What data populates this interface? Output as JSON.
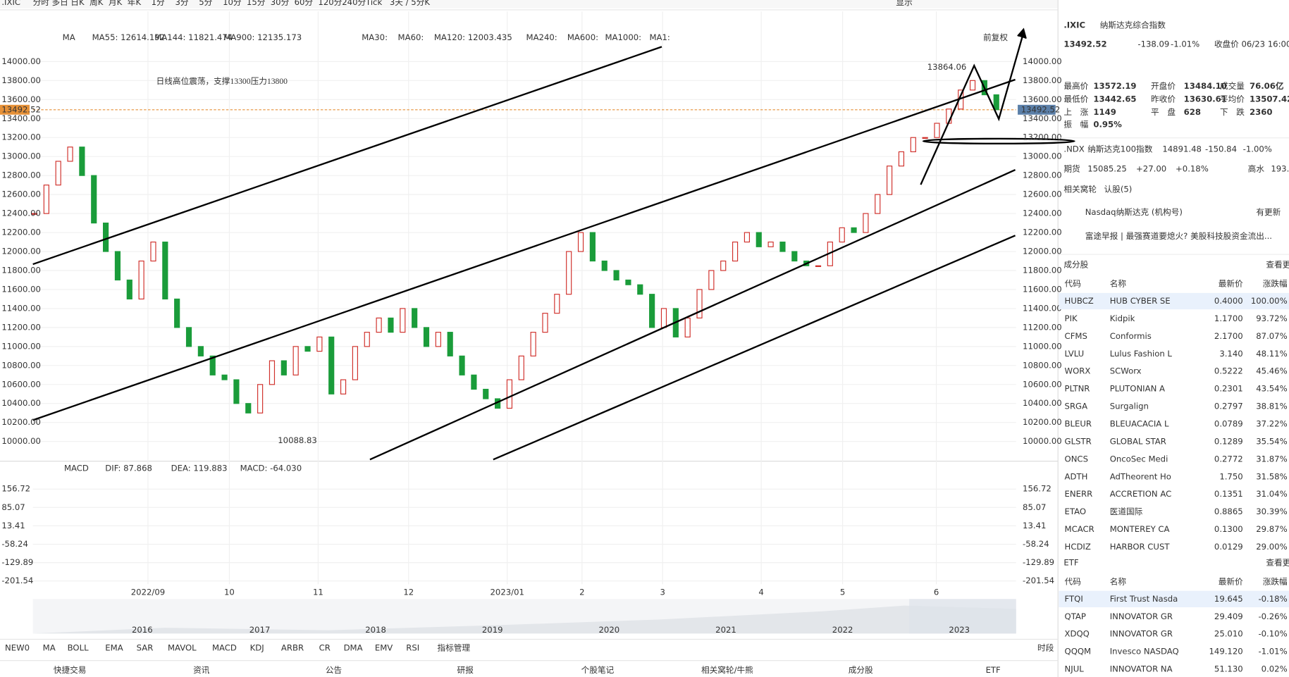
{
  "toolbar": {
    "ticker": ".IXIC",
    "periods": [
      "分时",
      "多日",
      "日K",
      "周K",
      "月K",
      "年K",
      "1分",
      "3分",
      "5分",
      "10分",
      "15分",
      "30分",
      "60分",
      "120分",
      "240分",
      "Tick",
      "3天 / 5分K"
    ],
    "display": "显示"
  },
  "chart": {
    "ma_legend": [
      "MA",
      "MA55: 12614.192",
      "MA144: 11821.474",
      "MA900: 12135.173",
      "MA30:",
      "MA60:",
      "MA120: 12003.435",
      "MA240:",
      "MA600:",
      "MA1000:",
      "MA1:"
    ],
    "adjust": "前复权",
    "annotation": "日线高位震荡，支撑13300压力13800",
    "yticks": [
      {
        "value": 14000,
        "label": "14000.00"
      },
      {
        "value": 13800,
        "label": "13800.00"
      },
      {
        "value": 13600,
        "label": "13600.00"
      },
      {
        "value": 13400,
        "label": "13400.00"
      },
      {
        "value": 13200,
        "label": "13200.00"
      },
      {
        "value": 13000,
        "label": "13000.00"
      },
      {
        "value": 12800,
        "label": "12800.00"
      },
      {
        "value": 12600,
        "label": "12600.00"
      },
      {
        "value": 12400,
        "label": "12400.00"
      },
      {
        "value": 12200,
        "label": "12200.00"
      },
      {
        "value": 12000,
        "label": "12000.00"
      },
      {
        "value": 11800,
        "label": "11800.00"
      },
      {
        "value": 11600,
        "label": "11600.00"
      },
      {
        "value": 11400,
        "label": "11400.00"
      },
      {
        "value": 11200,
        "label": "11200.00"
      },
      {
        "value": 11000,
        "label": "11000.00"
      },
      {
        "value": 10800,
        "label": "10800.00"
      },
      {
        "value": 10600,
        "label": "10600.00"
      },
      {
        "value": 10400,
        "label": "10400.00"
      },
      {
        "value": 10200,
        "label": "10200.00"
      },
      {
        "value": 10000,
        "label": "10000.00"
      }
    ],
    "x_labels": [
      "2022/09",
      "10",
      "11",
      "12",
      "2023/01",
      "2",
      "3",
      "4",
      "5",
      "6"
    ],
    "high_label": "13864.06",
    "low_label": "10088.83",
    "last_price": {
      "value": 13492.52,
      "label": "13492.52"
    },
    "closes": [
      12400,
      12700,
      12950,
      13100,
      12800,
      12300,
      12000,
      11700,
      11500,
      11900,
      12100,
      11500,
      11200,
      11000,
      10900,
      10700,
      10650,
      10400,
      10300,
      10600,
      10850,
      10700,
      11000,
      10950,
      11100,
      10500,
      10650,
      11000,
      11150,
      11300,
      11150,
      11400,
      11200,
      11000,
      11150,
      10900,
      10700,
      10550,
      10450,
      10350,
      10650,
      10900,
      11150,
      11350,
      11550,
      12000,
      12200,
      11900,
      11800,
      11700,
      11650,
      11550,
      11200,
      11400,
      11100,
      11300,
      11600,
      11800,
      11900,
      12100,
      12200,
      12050,
      12100,
      12000,
      11900,
      11850,
      11850,
      12100,
      12250,
      12200,
      12400,
      12600,
      12900,
      13050,
      13200,
      13200,
      13350,
      13500,
      13700,
      13800,
      13650,
      13492.52
    ],
    "nav_years": [
      "2016",
      "2017",
      "2018",
      "2019",
      "2020",
      "2021",
      "2022",
      "2023"
    ]
  },
  "macd": {
    "legend": [
      "MACD",
      "DIF: 87.868",
      "DEA: 119.883",
      "MACD: -64.030"
    ],
    "yticks": [
      156.72,
      85.07,
      13.41,
      -58.24,
      -129.89,
      -201.54
    ]
  },
  "indicators": [
    "NEW0",
    "MA",
    "BOLL",
    "EMA",
    "SAR",
    "MAVOL",
    "MACD",
    "KDJ",
    "ARBR",
    "CR",
    "DMA",
    "EMV",
    "RSI",
    "指标管理"
  ],
  "session": "时段",
  "bottom_tabs": [
    "快捷交易",
    "资讯",
    "公告",
    "研报",
    "个股笔记",
    "相关窝轮/牛熊",
    "成分股",
    "ETF"
  ],
  "quote": {
    "code": ".IXIC",
    "name": "纳斯达克综合指数",
    "price": "13492.52",
    "change": "-138.09",
    "pct": "-1.01%",
    "time": "收盘价 06/23 16:00(",
    "stats": [
      [
        "最高价",
        "13572.19",
        "开盘价",
        "13484.10",
        "成交量",
        "76.06亿"
      ],
      [
        "最低价",
        "13442.65",
        "昨收价",
        "13630.61",
        "平均价",
        "13507.42"
      ],
      [
        "上　涨",
        "1149",
        "平　盘",
        "628",
        "下　跌",
        "2360"
      ],
      [
        "振　幅",
        "0.95%"
      ]
    ],
    "ndx": [
      ".NDX",
      "纳斯达克100指数",
      "14891.48",
      "-150.84",
      "-1.00%"
    ],
    "futures": [
      "期货",
      "15085.25",
      "+27.00",
      "+0.18%",
      "高水",
      "193."
    ],
    "warrants": [
      "相关窝轮",
      "认股(5)"
    ],
    "news": [
      [
        "Nasdaq纳斯达克 (机构号)",
        "有更新"
      ],
      [
        "富途早报 | 最强赛道要熄火? 美股科技股资金流出..."
      ]
    ]
  },
  "constituents": {
    "title": "成分股",
    "more": "查看更",
    "header": [
      "代码",
      "名称",
      "最新价",
      "涨跌幅"
    ],
    "rows": [
      [
        "HUBCZ",
        "HUB CYBER SE",
        "0.4000",
        "100.00%"
      ],
      [
        "PIK",
        "Kidpik",
        "1.1700",
        "93.72%"
      ],
      [
        "CFMS",
        "Conformis",
        "2.1700",
        "87.07%"
      ],
      [
        "LVLU",
        "Lulus Fashion L",
        "3.140",
        "48.11%"
      ],
      [
        "WORX",
        "SCWorx",
        "0.5222",
        "45.46%"
      ],
      [
        "PLTNR",
        "PLUTONIAN A",
        "0.2301",
        "43.54%"
      ],
      [
        "SRGA",
        "Surgalign",
        "0.2797",
        "38.81%"
      ],
      [
        "BLEUR",
        "BLEUACACIA L",
        "0.0789",
        "37.22%"
      ],
      [
        "GLSTR",
        "GLOBAL STAR",
        "0.1289",
        "35.54%"
      ],
      [
        "ONCS",
        "OncoSec Medi",
        "0.2772",
        "31.87%"
      ],
      [
        "ADTH",
        "AdTheorent Ho",
        "1.750",
        "31.58%"
      ],
      [
        "ENERR",
        "ACCRETION AC",
        "0.1351",
        "31.04%"
      ],
      [
        "ETAO",
        "医道国际",
        "0.8865",
        "30.39%"
      ],
      [
        "MCACR",
        "MONTEREY CA",
        "0.1300",
        "29.87%"
      ],
      [
        "HCDIZ",
        "HARBOR CUST",
        "0.0129",
        "29.00%"
      ]
    ]
  },
  "etf": {
    "title": "ETF",
    "more": "查看更",
    "header": [
      "代码",
      "名称",
      "最新价",
      "涨跌幅"
    ],
    "rows": [
      [
        "FTQI",
        "First Trust Nasda",
        "19.645",
        "-0.18%"
      ],
      [
        "QTAP",
        "INNOVATOR GR",
        "29.409",
        "-0.26%"
      ],
      [
        "XDQQ",
        "INNOVATOR GR",
        "25.010",
        "-0.10%"
      ],
      [
        "QQQM",
        "Invesco NASDAQ",
        "149.120",
        "-1.01%"
      ],
      [
        "NJUL",
        "INNOVATOR NA",
        "51.130",
        "0.02%"
      ]
    ]
  }
}
